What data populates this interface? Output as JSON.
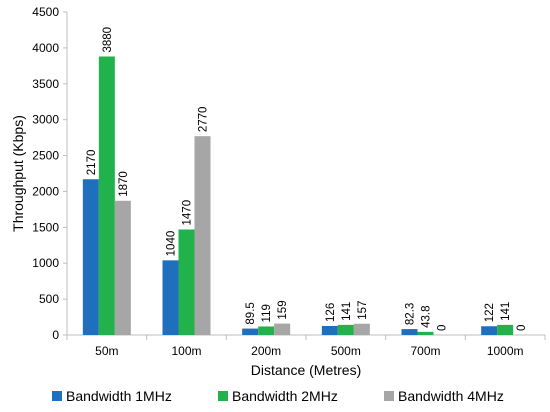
{
  "chart_data": {
    "type": "bar",
    "xlabel": "Distance (Metres)",
    "ylabel": "Throughput (Kbps)",
    "categories": [
      "50m",
      "100m",
      "200m",
      "500m",
      "700m",
      "1000m"
    ],
    "ylim": [
      0,
      4500
    ],
    "yticks": [
      0,
      500,
      1000,
      1500,
      2000,
      2500,
      3000,
      3500,
      4000,
      4500
    ],
    "grid": false,
    "legend": "bottom",
    "series": [
      {
        "name": "Bandwidth 1MHz",
        "color": "#1f6fbf",
        "values": [
          2170,
          1040,
          89.5,
          126,
          82.3,
          122
        ],
        "labels": [
          "2170",
          "1040",
          "89.5",
          "126",
          "82.3",
          "122"
        ]
      },
      {
        "name": "Bandwidth 2MHz",
        "color": "#22b24c",
        "values": [
          3880,
          1470,
          119,
          141,
          43.8,
          141
        ],
        "labels": [
          "3880",
          "1470",
          "119",
          "141",
          "43.8",
          "141"
        ]
      },
      {
        "name": "Bandwidth 4MHz",
        "color": "#a6a6a6",
        "values": [
          1870,
          2770,
          159,
          157,
          0,
          0
        ],
        "labels": [
          "1870",
          "2770",
          "159",
          "157",
          "0",
          "0"
        ]
      }
    ]
  }
}
